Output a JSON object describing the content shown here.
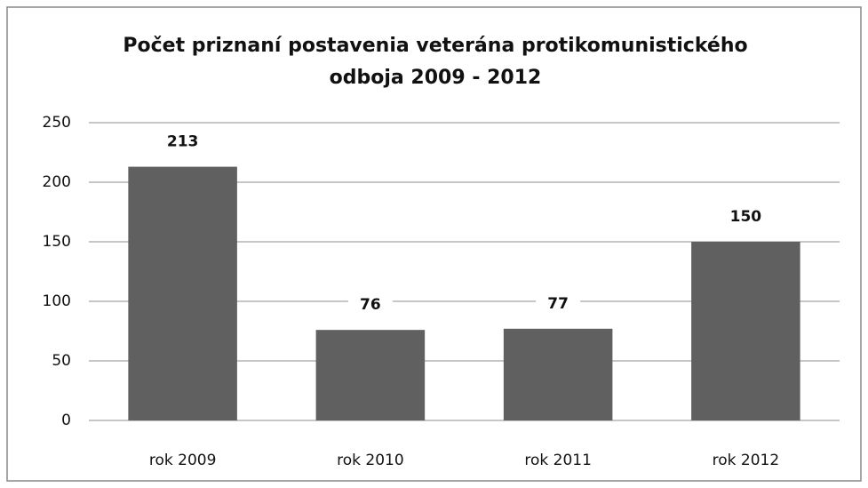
{
  "chart_data": {
    "type": "bar",
    "title": "Počet priznaní postavenia veterána protikomunistického odboja 2009 - 2012",
    "categories": [
      "rok 2009",
      "rok 2010",
      "rok 2011",
      "rok 2012"
    ],
    "values": [
      213,
      76,
      77,
      150
    ],
    "color": "#606060",
    "ylim": [
      0,
      250
    ],
    "yticks": [
      0,
      50,
      100,
      150,
      200,
      250
    ],
    "grid": true
  }
}
